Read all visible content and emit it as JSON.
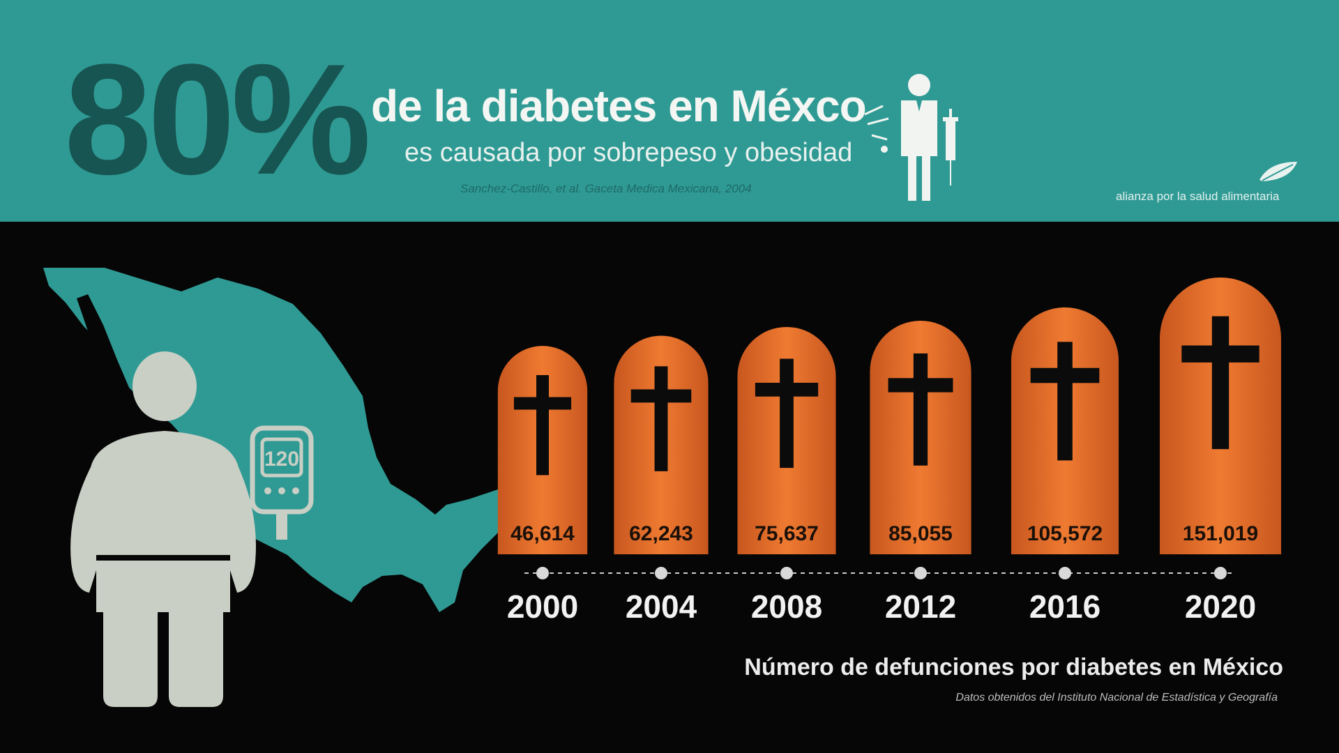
{
  "header": {
    "big_stat": "80%",
    "headline": "de la diabetes en Méxco",
    "subheadline": "es causada por sobrepeso y obesidad",
    "citation": "Sanchez-Castillo, et al. Gaceta Medica Mexicana, 2004",
    "org_name": "alianza por la salud alimentaria"
  },
  "illustration": {
    "glucometer_reading": "120"
  },
  "colors": {
    "header_bg": "#2f9a94",
    "stat_dark": "#175552",
    "map": "#2f9a94",
    "tomb": "#e8742f",
    "figure": "#c9cfc4",
    "background": "#060606"
  },
  "chart_data": {
    "type": "bar",
    "mark": "tombstone",
    "title": "Número de defunciones por diabetes en México",
    "source": "Datos obtenidos del Instituto Nacional de Estadística y Geografía",
    "categories": [
      "2000",
      "2004",
      "2008",
      "2012",
      "2016",
      "2020"
    ],
    "values": [
      46614,
      62243,
      75637,
      85055,
      105572,
      151019
    ],
    "value_labels": [
      "46,614",
      "62,243",
      "75,637",
      "85,055",
      "105,572",
      "151,019"
    ],
    "grid": false,
    "legend": "none"
  }
}
